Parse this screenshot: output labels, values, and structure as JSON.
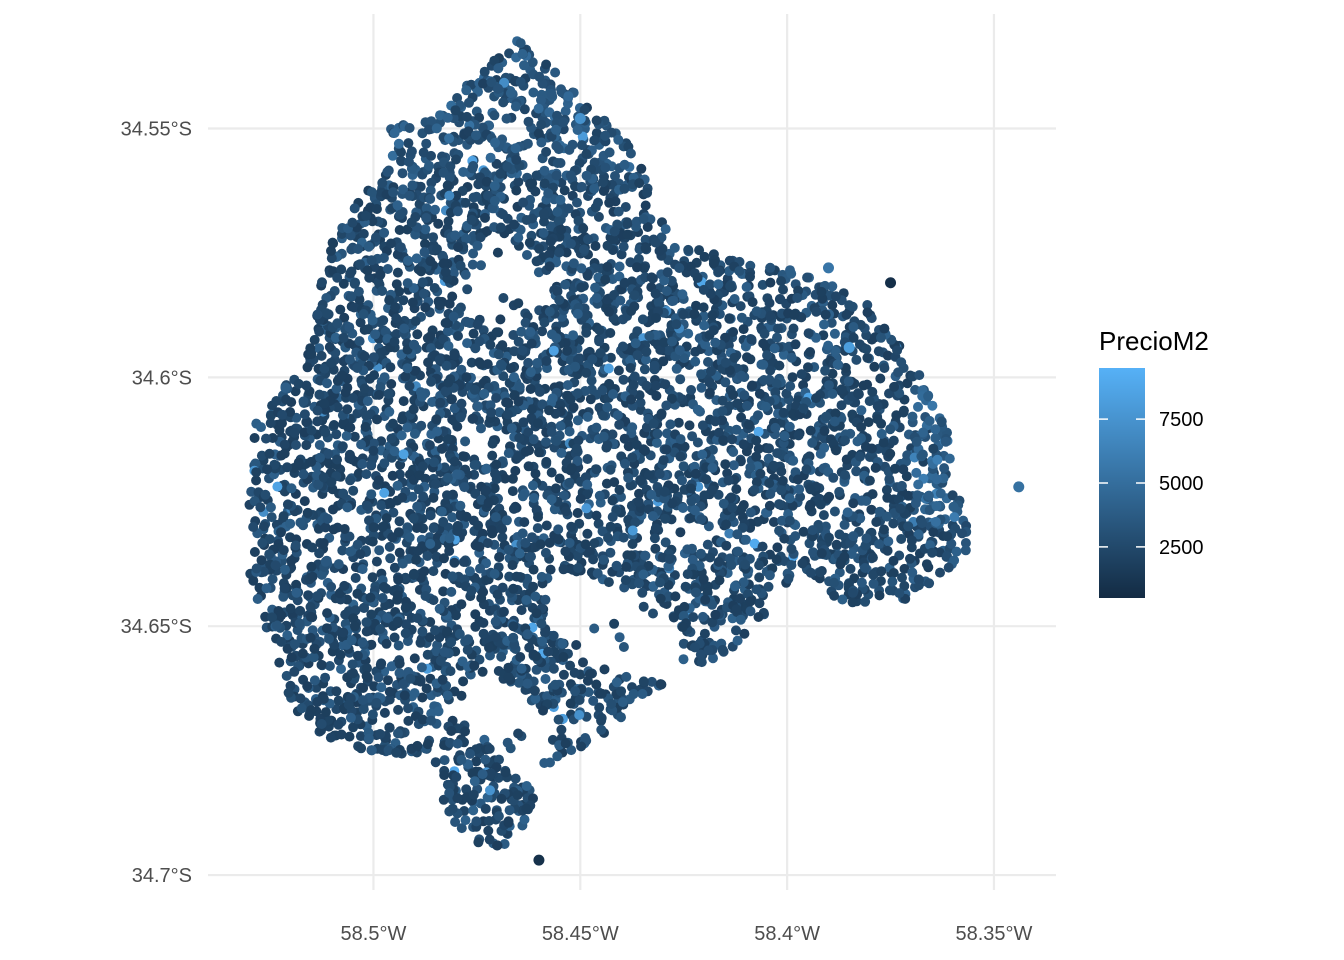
{
  "chart_data": {
    "type": "scatter",
    "title": "",
    "xlabel": "",
    "ylabel": "",
    "x_ticks": [
      {
        "value": -58.5,
        "label": "58.5°W"
      },
      {
        "value": -58.45,
        "label": "58.45°W"
      },
      {
        "value": -58.4,
        "label": "58.4°W"
      },
      {
        "value": -58.35,
        "label": "58.35°W"
      }
    ],
    "y_ticks": [
      {
        "value": -34.55,
        "label": "34.55°S"
      },
      {
        "value": -34.6,
        "label": "34.6°S"
      },
      {
        "value": -34.65,
        "label": "34.65°S"
      },
      {
        "value": -34.7,
        "label": "34.7°S"
      }
    ],
    "xlim": [
      -58.54,
      -58.335
    ],
    "ylim": [
      -34.703,
      -34.527
    ],
    "grid": true,
    "legend": {
      "title": "PrecioM2",
      "placement": "right",
      "ticks": [
        {
          "value": 2500,
          "label": "2500"
        },
        {
          "value": 5000,
          "label": "5000"
        },
        {
          "value": 7500,
          "label": "7500"
        }
      ],
      "range": [
        500,
        9500
      ],
      "color_low": "#132B43",
      "color_high": "#56B1F7"
    },
    "point_color_low": "#132B43",
    "point_color_high": "#56B1F7",
    "outlier_points": [
      {
        "lon": -58.344,
        "lat": -34.622,
        "value": 5200
      },
      {
        "lon": -58.375,
        "lat": -34.581,
        "value": 800
      },
      {
        "lon": -58.46,
        "lat": -34.697,
        "value": 900
      },
      {
        "lon": -58.385,
        "lat": -34.594,
        "value": 8200
      },
      {
        "lon": -58.45,
        "lat": -34.548,
        "value": 7400
      },
      {
        "lon": -58.39,
        "lat": -34.578,
        "value": 5500
      }
    ]
  }
}
